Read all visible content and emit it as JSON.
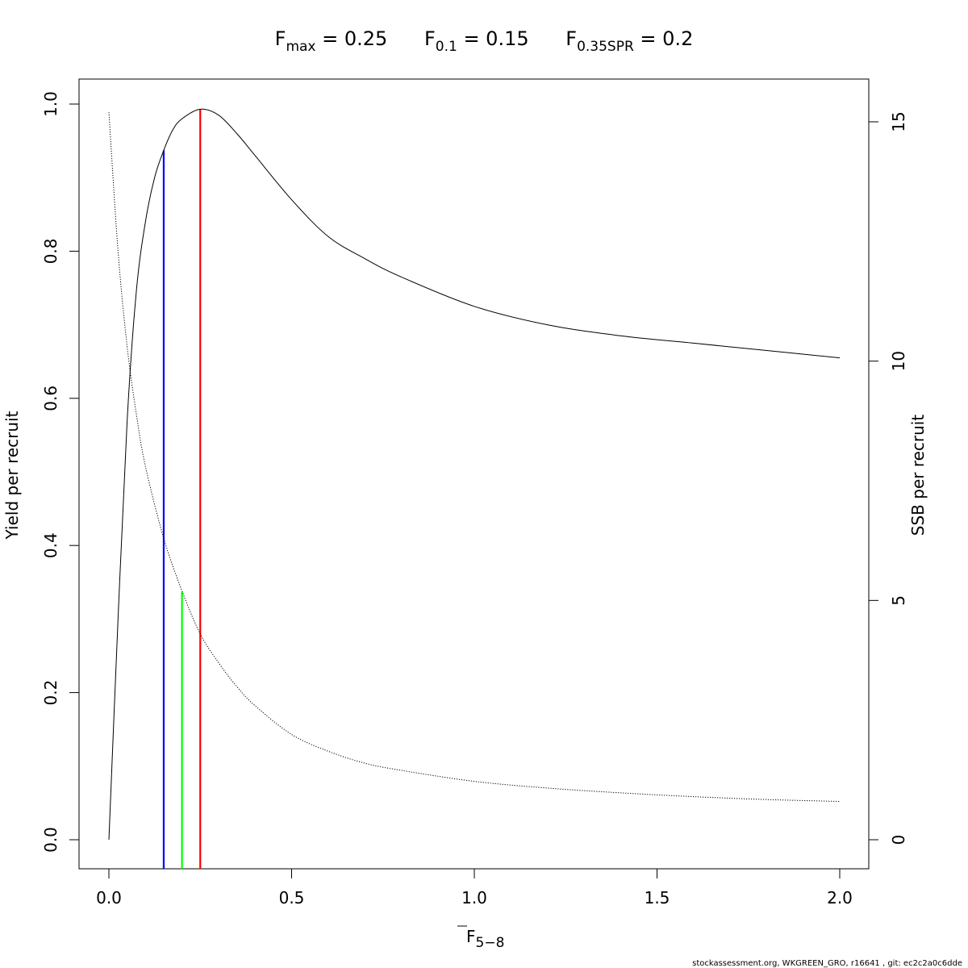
{
  "chart_data": {
    "type": "line",
    "title_terms": [
      {
        "main": "F",
        "sub": "max",
        "rest": " = 0.25"
      },
      {
        "main": "F",
        "sub": "0.1",
        "rest": " = 0.15"
      },
      {
        "main": "F",
        "sub": "0.35SPR",
        "rest": " = 0.2"
      }
    ],
    "xlabel": {
      "main": "F",
      "sub": "5−8"
    },
    "ylabel": "Yield per recruit",
    "y2label": "SSB per recruit",
    "xlim": [
      0,
      2
    ],
    "ylim": [
      0,
      1
    ],
    "y2lim": [
      0,
      15
    ],
    "x_ticks": [
      0,
      0.5,
      1,
      1.5,
      2
    ],
    "x_tick_labels": [
      "0.0",
      "0.5",
      "1.0",
      "1.5",
      "2.0"
    ],
    "y_ticks": [
      0,
      0.2,
      0.4,
      0.6,
      0.8,
      1
    ],
    "y_tick_labels": [
      "0.0",
      "0.2",
      "0.4",
      "0.6",
      "0.8",
      "1.0"
    ],
    "y2_ticks": [
      0,
      5,
      10,
      15
    ],
    "y2_tick_labels": [
      "0",
      "5",
      "10",
      "15"
    ],
    "series": [
      {
        "name": "",
        "axis": "left",
        "style": "solid",
        "color": "#000000",
        "x": [
          0,
          0.025,
          0.05,
          0.075,
          0.1,
          0.125,
          0.15,
          0.175,
          0.2,
          0.25,
          0.3,
          0.35,
          0.4,
          0.5,
          0.6,
          0.7,
          0.8,
          1.0,
          1.2,
          1.4,
          1.6,
          1.8,
          2.0
        ],
        "y": [
          0,
          0.3,
          0.57,
          0.745,
          0.84,
          0.9,
          0.937,
          0.965,
          0.98,
          0.993,
          0.985,
          0.96,
          0.93,
          0.87,
          0.82,
          0.79,
          0.765,
          0.725,
          0.7,
          0.685,
          0.675,
          0.665,
          0.655
        ]
      },
      {
        "name": "",
        "axis": "right",
        "style": "dotted",
        "color": "#000000",
        "x": [
          0,
          0.025,
          0.05,
          0.075,
          0.1,
          0.15,
          0.2,
          0.25,
          0.3,
          0.35,
          0.4,
          0.5,
          0.6,
          0.7,
          0.8,
          1.0,
          1.2,
          1.4,
          1.6,
          1.8,
          2.0
        ],
        "y": [
          15.2,
          12.3,
          10.3,
          8.9,
          7.8,
          6.3,
          5.2,
          4.3,
          3.7,
          3.2,
          2.8,
          2.2,
          1.85,
          1.6,
          1.45,
          1.22,
          1.08,
          0.98,
          0.9,
          0.84,
          0.8
        ]
      }
    ],
    "reference_lines": [
      {
        "x": 0.15,
        "y_top": 0.937,
        "color": "#0000ff"
      },
      {
        "x": 0.2,
        "y_top": 0.337,
        "color": "#00ff00"
      },
      {
        "x": 0.25,
        "y_top": 0.993,
        "color": "#ff0000"
      }
    ],
    "grid": false,
    "legend": "none"
  },
  "footer": "stockassessment.org, WKGREEN_GRO, r16641 , git: ec2c2a0c6dde"
}
